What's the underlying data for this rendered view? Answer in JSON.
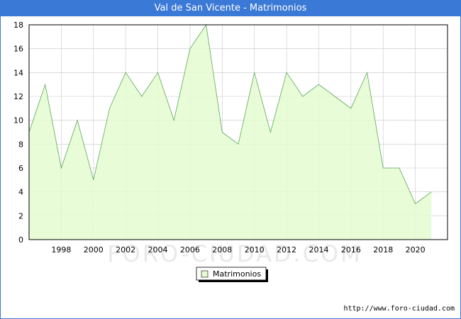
{
  "window": {
    "title": "Val de San Vicente - Matrimonios"
  },
  "watermark": "FORO-CIUDAD.COM",
  "footer_url": "http://www.foro-ciudad.com",
  "colors": {
    "titlebar": "#3a79d6",
    "area_fill": "#e4fcd0",
    "line": "#5aa85a",
    "grid": "#c8c8c8"
  },
  "chart_data": {
    "type": "area",
    "title": "Val de San Vicente - Matrimonios",
    "xlabel": "",
    "ylabel": "",
    "x": [
      1996,
      1997,
      1998,
      1999,
      2000,
      2001,
      2002,
      2003,
      2004,
      2005,
      2006,
      2007,
      2008,
      2009,
      2010,
      2011,
      2012,
      2013,
      2014,
      2015,
      2016,
      2017,
      2018,
      2019,
      2020,
      2021
    ],
    "series": [
      {
        "name": "Matrimonios",
        "values": [
          9,
          13,
          6,
          10,
          5,
          11,
          14,
          12,
          14,
          10,
          16,
          18,
          9,
          8,
          14,
          9,
          14,
          12,
          13,
          12,
          11,
          14,
          6,
          6,
          3,
          4
        ]
      }
    ],
    "xlim": [
      1996,
      2022
    ],
    "ylim": [
      0,
      18
    ],
    "x_ticks": [
      1998,
      2000,
      2002,
      2004,
      2006,
      2008,
      2010,
      2012,
      2014,
      2016,
      2018,
      2020
    ],
    "y_ticks": [
      0,
      2,
      4,
      6,
      8,
      10,
      12,
      14,
      16,
      18
    ],
    "grid": true,
    "legend": {
      "position": "bottom-center",
      "entries": [
        "Matrimonios"
      ]
    }
  }
}
